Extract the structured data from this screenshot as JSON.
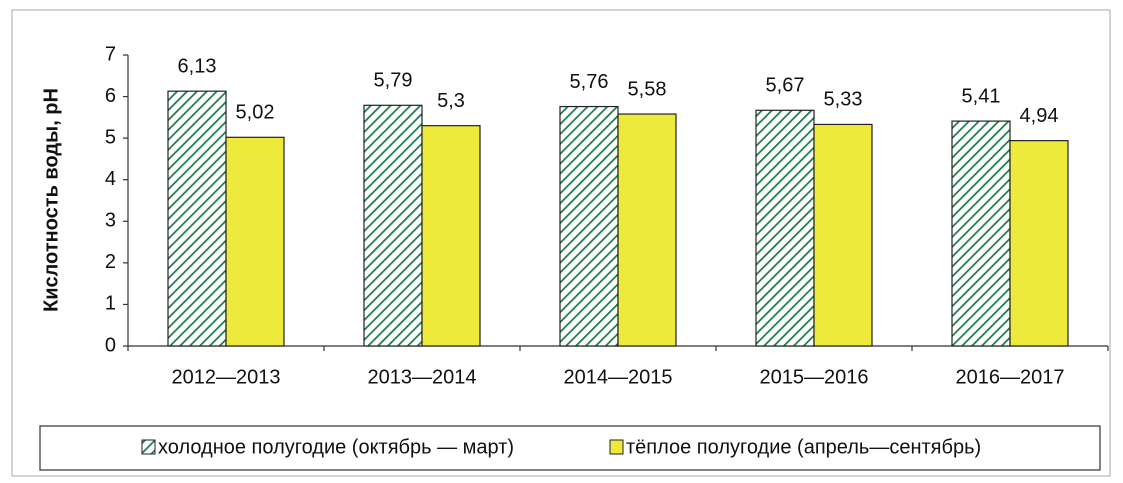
{
  "chart_data": {
    "type": "bar",
    "ylabel": "Кислотность воды, pH",
    "categories": [
      "2012—2013",
      "2013—2014",
      "2014—2015",
      "2015—2016",
      "2016—2017"
    ],
    "series": [
      {
        "name": "холодное полугодие (октябрь — март)",
        "color": "#1f7a4d",
        "hatch": true,
        "values": [
          6.13,
          5.79,
          5.76,
          5.67,
          5.41
        ],
        "value_labels": [
          "6,13",
          "5,79",
          "5,76",
          "5,67",
          "5,41"
        ]
      },
      {
        "name": "тёплое полугодие (апрель—сентябрь)",
        "color": "#eeea3c",
        "hatch": false,
        "values": [
          5.02,
          5.3,
          5.58,
          5.33,
          4.94
        ],
        "value_labels": [
          "5,02",
          "5,3",
          "5,58",
          "5,33",
          "4,94"
        ]
      }
    ],
    "ylim": [
      0,
      7
    ],
    "yticks": [
      0,
      1,
      2,
      3,
      4,
      5,
      6,
      7
    ],
    "grid": false,
    "legend": "bottom"
  }
}
